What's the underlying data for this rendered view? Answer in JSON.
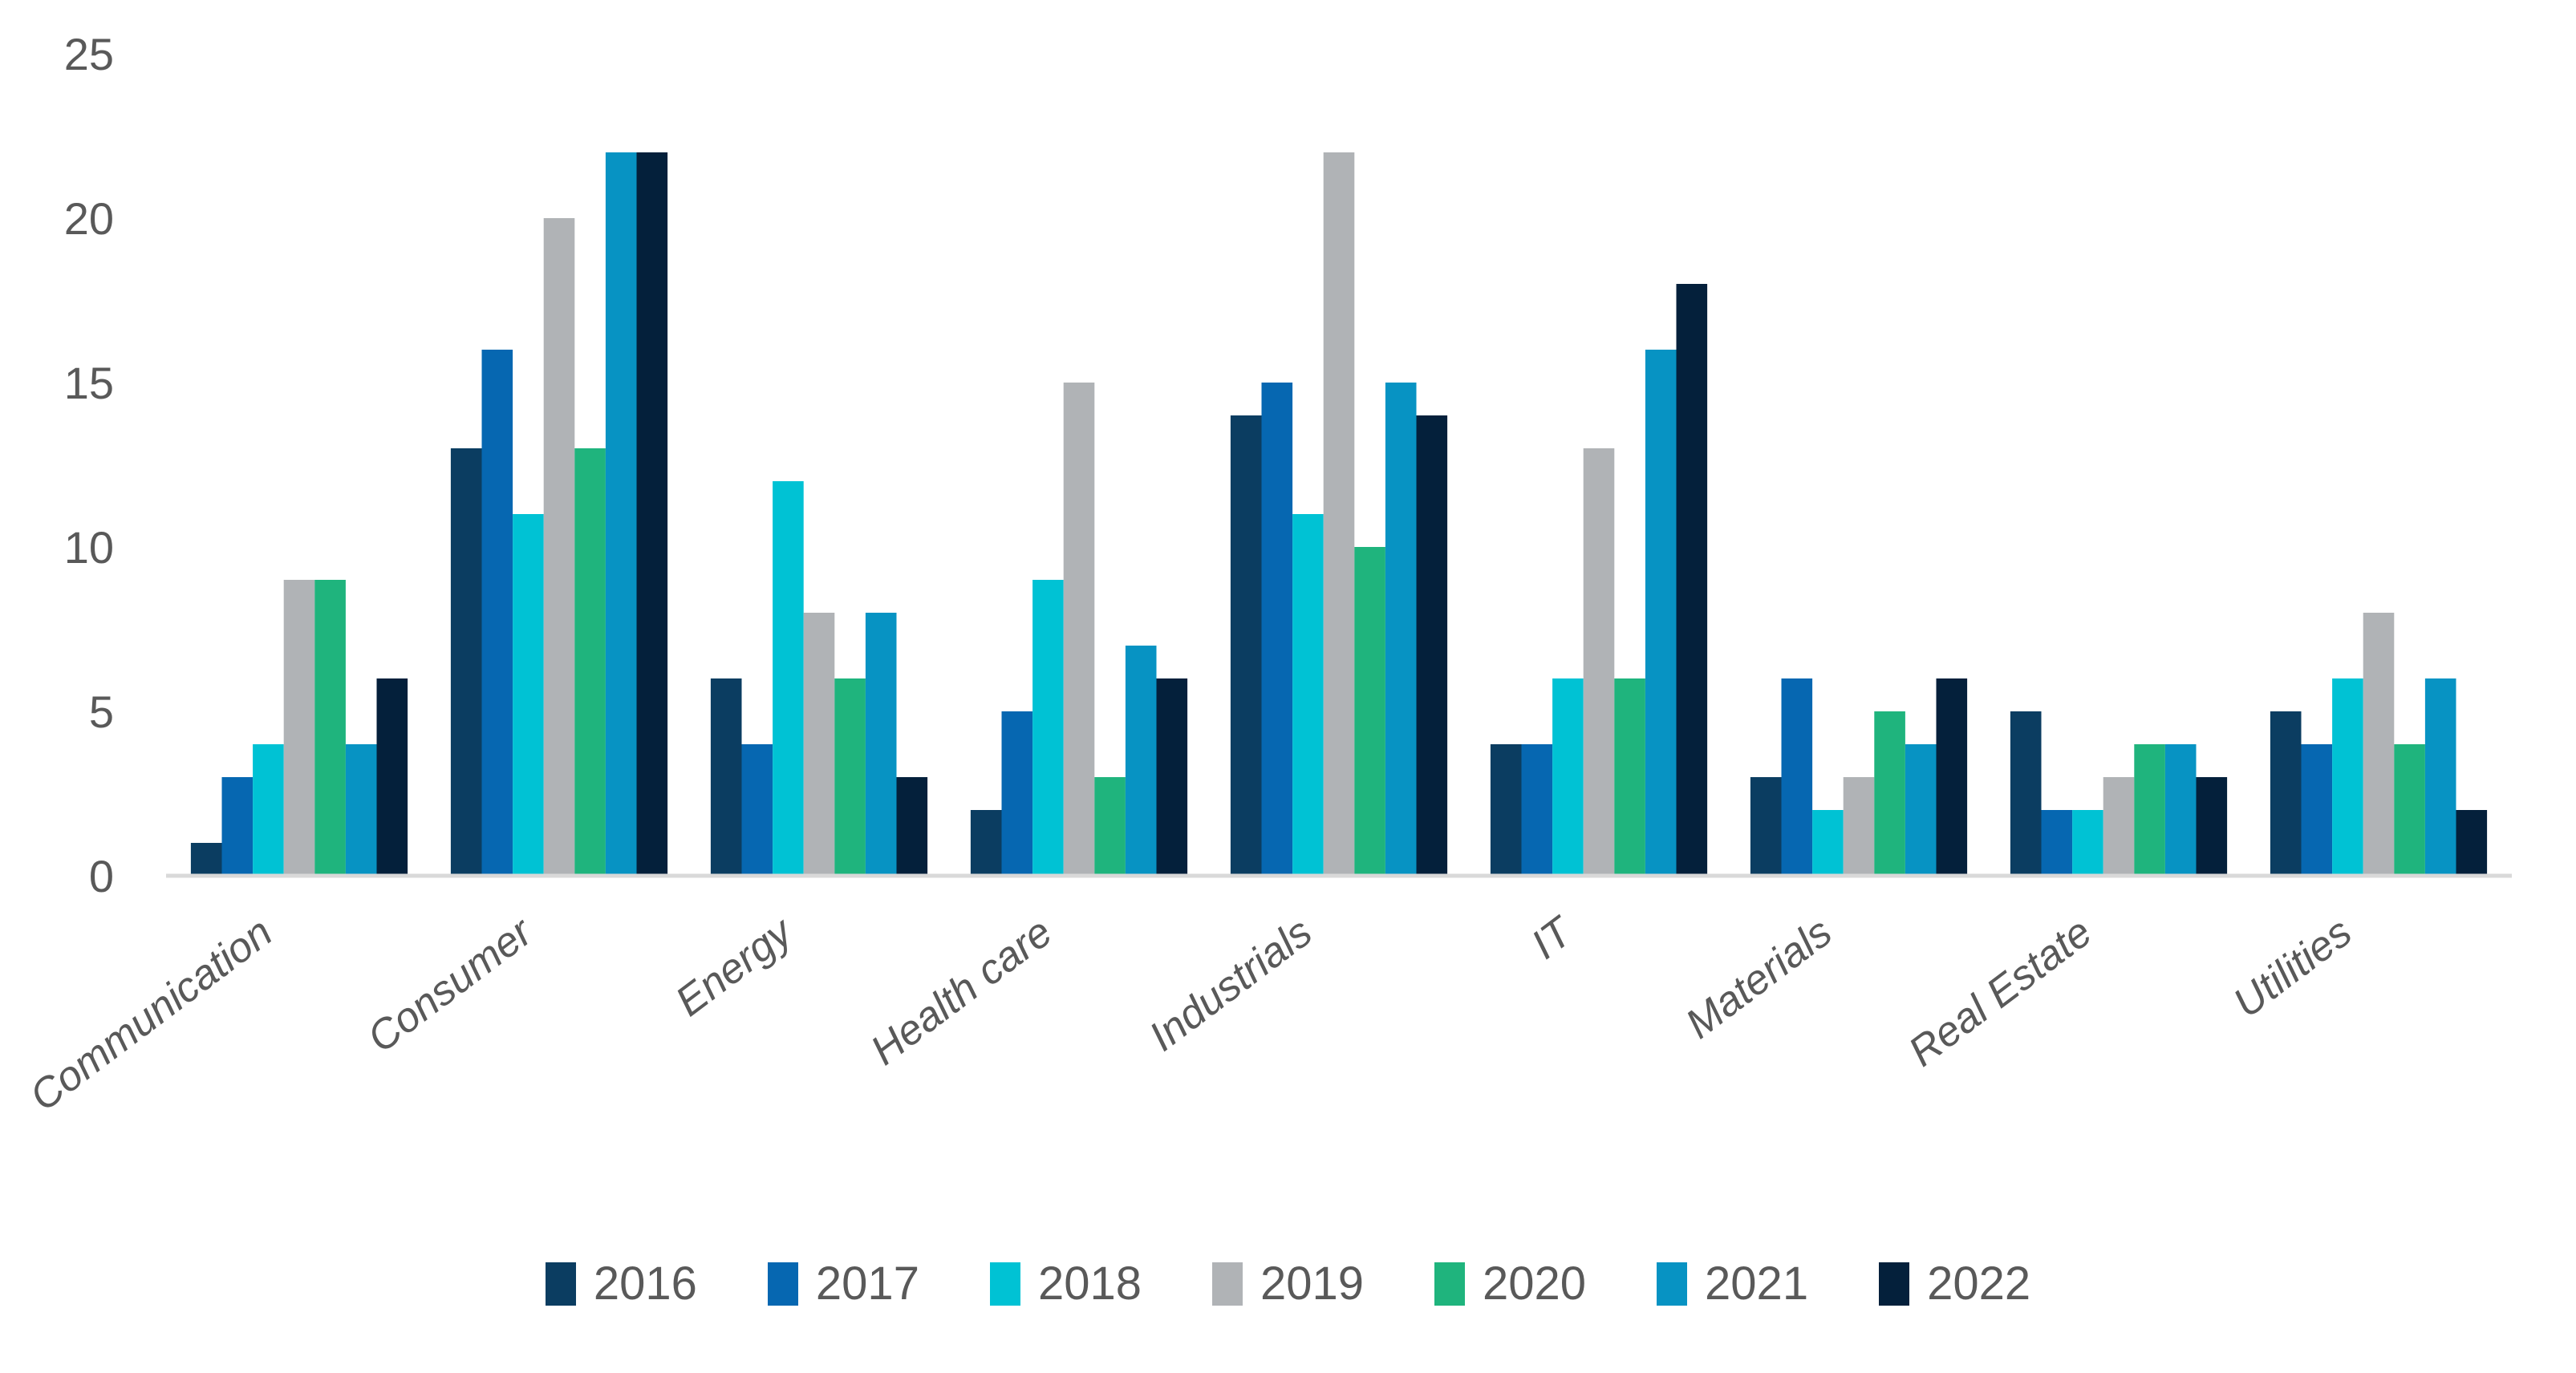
{
  "chart_data": {
    "type": "bar",
    "title": "",
    "xlabel": "",
    "ylabel": "",
    "categories": [
      "Communication",
      "Consumer",
      "Energy",
      "Health care",
      "Industrials",
      "IT",
      "Materials",
      "Real Estate",
      "Utilities"
    ],
    "series": [
      {
        "name": "2016",
        "color": "#0b3d61",
        "values": [
          1,
          13,
          6,
          2,
          14,
          4,
          3,
          5,
          5
        ]
      },
      {
        "name": "2017",
        "color": "#0667b1",
        "values": [
          3,
          16,
          4,
          5,
          15,
          4,
          6,
          2,
          4
        ]
      },
      {
        "name": "2018",
        "color": "#00c2d4",
        "values": [
          4,
          11,
          12,
          9,
          11,
          6,
          2,
          2,
          6
        ]
      },
      {
        "name": "2019",
        "color": "#b0b3b6",
        "values": [
          9,
          20,
          8,
          15,
          22,
          13,
          3,
          3,
          8
        ]
      },
      {
        "name": "2020",
        "color": "#1fb47d",
        "values": [
          9,
          13,
          6,
          3,
          10,
          6,
          5,
          4,
          4
        ]
      },
      {
        "name": "2021",
        "color": "#0793c3",
        "values": [
          4,
          22,
          8,
          7,
          15,
          16,
          4,
          4,
          6
        ]
      },
      {
        "name": "2022",
        "color": "#04203b",
        "values": [
          6,
          22,
          3,
          6,
          14,
          18,
          6,
          3,
          2
        ]
      }
    ],
    "y_axis": {
      "min": 0,
      "max": 25,
      "tick_interval": 5,
      "ticks": [
        "0",
        "5",
        "10",
        "15",
        "20",
        "25"
      ]
    },
    "x_axis": {
      "label_rotation_degrees": -37,
      "label_style": "italic"
    },
    "legend": {
      "position": "bottom",
      "entries": [
        "2016",
        "2017",
        "2018",
        "2019",
        "2020",
        "2021",
        "2022"
      ]
    },
    "grid": "off",
    "colors": {
      "background": "#ffffff",
      "axis_line": "#d9d9d9",
      "tick_label": "#595959",
      "category_label": "#595959",
      "legend_label": "#595959"
    }
  }
}
